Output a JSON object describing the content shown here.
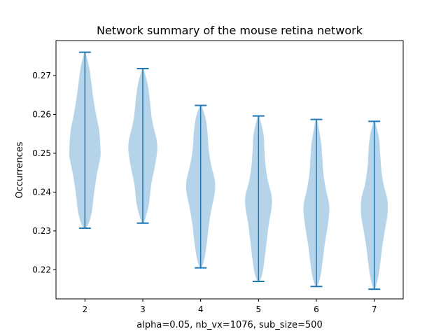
{
  "chart_data": {
    "type": "violin",
    "title": "Network summary of the mouse retina network",
    "xlabel": "alpha=0.05, nb_vx=1076, sub_size=500",
    "ylabel": "Occurrences",
    "x_ticks": [
      "2",
      "3",
      "4",
      "5",
      "6",
      "7"
    ],
    "y_ticks": [
      "0.22",
      "0.23",
      "0.24",
      "0.25",
      "0.26",
      "0.27"
    ],
    "xlim": [
      1.5,
      7.5
    ],
    "ylim": [
      0.2125,
      0.279
    ],
    "colors": {
      "body": "#9ec5e2",
      "line": "#1f77b4",
      "axis": "#000000"
    },
    "violins": [
      {
        "category": "2",
        "min": 0.2307,
        "max": 0.276,
        "mode": 0.2522,
        "density": [
          [
            0.2307,
            0.05
          ],
          [
            0.232,
            0.25
          ],
          [
            0.235,
            0.45
          ],
          [
            0.24,
            0.6
          ],
          [
            0.245,
            0.8
          ],
          [
            0.249,
            1.0
          ],
          [
            0.252,
            1.0
          ],
          [
            0.256,
            0.92
          ],
          [
            0.26,
            0.72
          ],
          [
            0.264,
            0.55
          ],
          [
            0.268,
            0.42
          ],
          [
            0.272,
            0.28
          ],
          [
            0.276,
            0.05
          ]
        ]
      },
      {
        "category": "3",
        "min": 0.232,
        "max": 0.2718,
        "mode": 0.252,
        "density": [
          [
            0.232,
            0.05
          ],
          [
            0.234,
            0.22
          ],
          [
            0.237,
            0.4
          ],
          [
            0.242,
            0.55
          ],
          [
            0.246,
            0.75
          ],
          [
            0.25,
            0.92
          ],
          [
            0.253,
            0.92
          ],
          [
            0.257,
            0.68
          ],
          [
            0.26,
            0.55
          ],
          [
            0.264,
            0.45
          ],
          [
            0.268,
            0.3
          ],
          [
            0.2718,
            0.05
          ]
        ]
      },
      {
        "category": "4",
        "min": 0.2205,
        "max": 0.2623,
        "mode": 0.2412,
        "density": [
          [
            0.2205,
            0.05
          ],
          [
            0.223,
            0.25
          ],
          [
            0.227,
            0.4
          ],
          [
            0.232,
            0.55
          ],
          [
            0.236,
            0.72
          ],
          [
            0.24,
            0.92
          ],
          [
            0.243,
            0.92
          ],
          [
            0.247,
            0.68
          ],
          [
            0.251,
            0.52
          ],
          [
            0.255,
            0.45
          ],
          [
            0.259,
            0.32
          ],
          [
            0.2623,
            0.05
          ]
        ]
      },
      {
        "category": "5",
        "min": 0.217,
        "max": 0.2596,
        "mode": 0.2385,
        "density": [
          [
            0.217,
            0.05
          ],
          [
            0.219,
            0.25
          ],
          [
            0.223,
            0.4
          ],
          [
            0.228,
            0.55
          ],
          [
            0.232,
            0.68
          ],
          [
            0.236,
            0.85
          ],
          [
            0.239,
            0.85
          ],
          [
            0.243,
            0.6
          ],
          [
            0.247,
            0.45
          ],
          [
            0.251,
            0.38
          ],
          [
            0.255,
            0.32
          ],
          [
            0.2596,
            0.05
          ]
        ]
      },
      {
        "category": "6",
        "min": 0.2157,
        "max": 0.2587,
        "mode": 0.2365,
        "density": [
          [
            0.2157,
            0.05
          ],
          [
            0.218,
            0.25
          ],
          [
            0.222,
            0.4
          ],
          [
            0.226,
            0.52
          ],
          [
            0.23,
            0.68
          ],
          [
            0.234,
            0.82
          ],
          [
            0.237,
            0.82
          ],
          [
            0.241,
            0.6
          ],
          [
            0.245,
            0.45
          ],
          [
            0.249,
            0.38
          ],
          [
            0.253,
            0.3
          ],
          [
            0.2587,
            0.05
          ]
        ]
      },
      {
        "category": "7",
        "min": 0.215,
        "max": 0.2582,
        "mode": 0.2365,
        "density": [
          [
            0.215,
            0.05
          ],
          [
            0.218,
            0.25
          ],
          [
            0.222,
            0.4
          ],
          [
            0.226,
            0.52
          ],
          [
            0.23,
            0.68
          ],
          [
            0.234,
            0.85
          ],
          [
            0.238,
            0.85
          ],
          [
            0.242,
            0.6
          ],
          [
            0.246,
            0.45
          ],
          [
            0.25,
            0.38
          ],
          [
            0.254,
            0.3
          ],
          [
            0.2582,
            0.05
          ]
        ]
      }
    ]
  }
}
